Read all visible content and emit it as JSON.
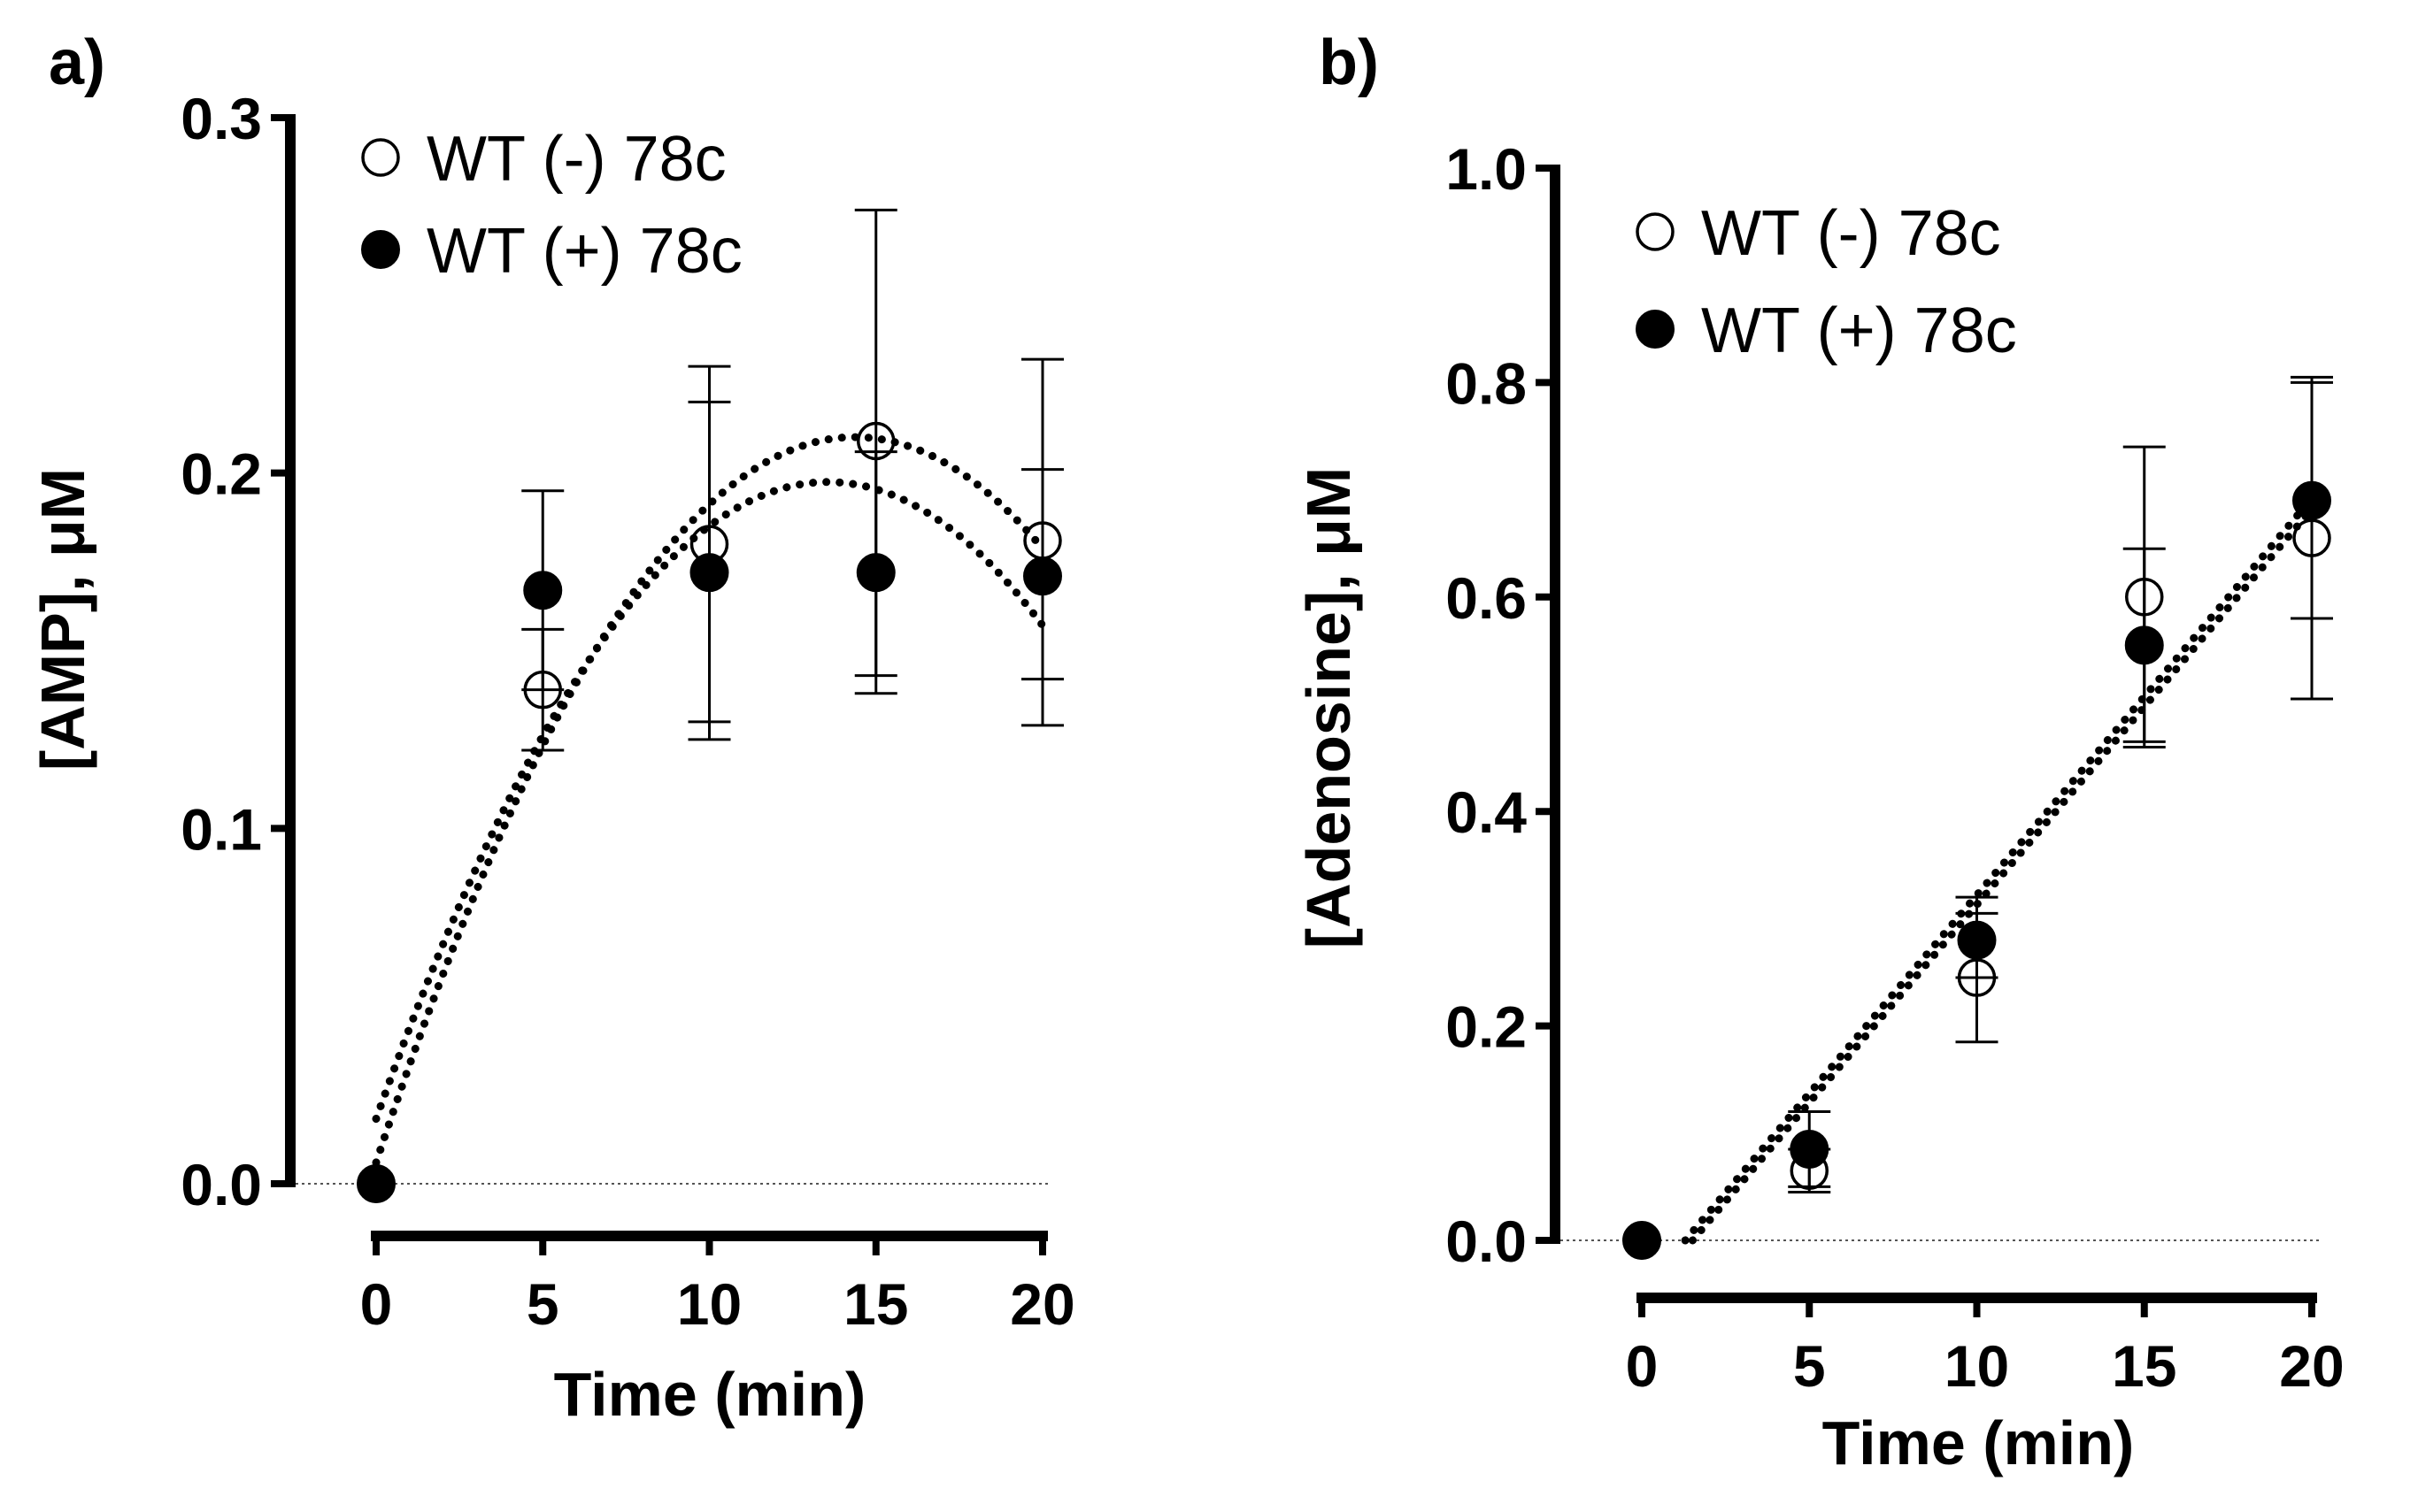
{
  "chart_data": [
    {
      "panel_label": "a)",
      "type": "scatter",
      "title": "",
      "xlabel": "Time (min)",
      "ylabel": "[AMP], μM",
      "xlim": [
        0,
        20
      ],
      "ylim": [
        0,
        0.3
      ],
      "xticks": [
        "0",
        "5",
        "10",
        "15",
        "20"
      ],
      "yticks": [
        "0.0",
        "0.1",
        "0.2",
        "0.3"
      ],
      "legend_position": "top-left",
      "grid": false,
      "zero_line": "dotted",
      "series": [
        {
          "name": "WT (-) 78c",
          "marker": "open-circle",
          "x": [
            0,
            5,
            10,
            15,
            20
          ],
          "y": [
            0.0,
            0.139,
            0.18,
            0.209,
            0.181
          ],
          "err_low": [
            0.0,
            0.122,
            0.13,
            0.143,
            0.142
          ],
          "err_high": [
            0.0,
            0.156,
            0.23,
            0.274,
            0.201
          ],
          "fit": "quadratic"
        },
        {
          "name": "WT (+) 78c",
          "marker": "filled-circle",
          "x": [
            0,
            5,
            10,
            15,
            20
          ],
          "y": [
            0.0,
            0.167,
            0.172,
            0.172,
            0.171
          ],
          "err_low": [
            0.0,
            0.139,
            0.125,
            0.138,
            0.129
          ],
          "err_high": [
            0.0,
            0.195,
            0.22,
            0.206,
            0.232
          ],
          "fit": "quadratic"
        }
      ]
    },
    {
      "panel_label": "b)",
      "type": "scatter",
      "title": "",
      "xlabel": "Time (min)",
      "ylabel": "[Adenosine], μM",
      "xlim": [
        0,
        20
      ],
      "ylim": [
        0,
        1.0
      ],
      "xticks": [
        "0",
        "5",
        "10",
        "15",
        "20"
      ],
      "yticks": [
        "0.0",
        "0.2",
        "0.4",
        "0.6",
        "0.8",
        "1.0"
      ],
      "legend_position": "top-left",
      "grid": false,
      "zero_line": "dotted",
      "series": [
        {
          "name": "WT (-) 78c",
          "marker": "open-circle",
          "x": [
            0,
            5,
            10,
            15,
            20
          ],
          "y": [
            0.0,
            0.065,
            0.245,
            0.6,
            0.655
          ],
          "err_low": [
            0.0,
            0.045,
            0.185,
            0.46,
            0.505
          ],
          "err_high": [
            0.0,
            0.085,
            0.305,
            0.74,
            0.805
          ],
          "fit": "linear"
        },
        {
          "name": "WT (+) 78c",
          "marker": "filled-circle",
          "x": [
            0,
            5,
            10,
            15,
            20
          ],
          "y": [
            0.0,
            0.085,
            0.28,
            0.555,
            0.69
          ],
          "err_low": [
            0.0,
            0.05,
            0.245,
            0.465,
            0.58
          ],
          "err_high": [
            0.0,
            0.12,
            0.32,
            0.645,
            0.8
          ],
          "fit": "linear"
        }
      ]
    }
  ]
}
